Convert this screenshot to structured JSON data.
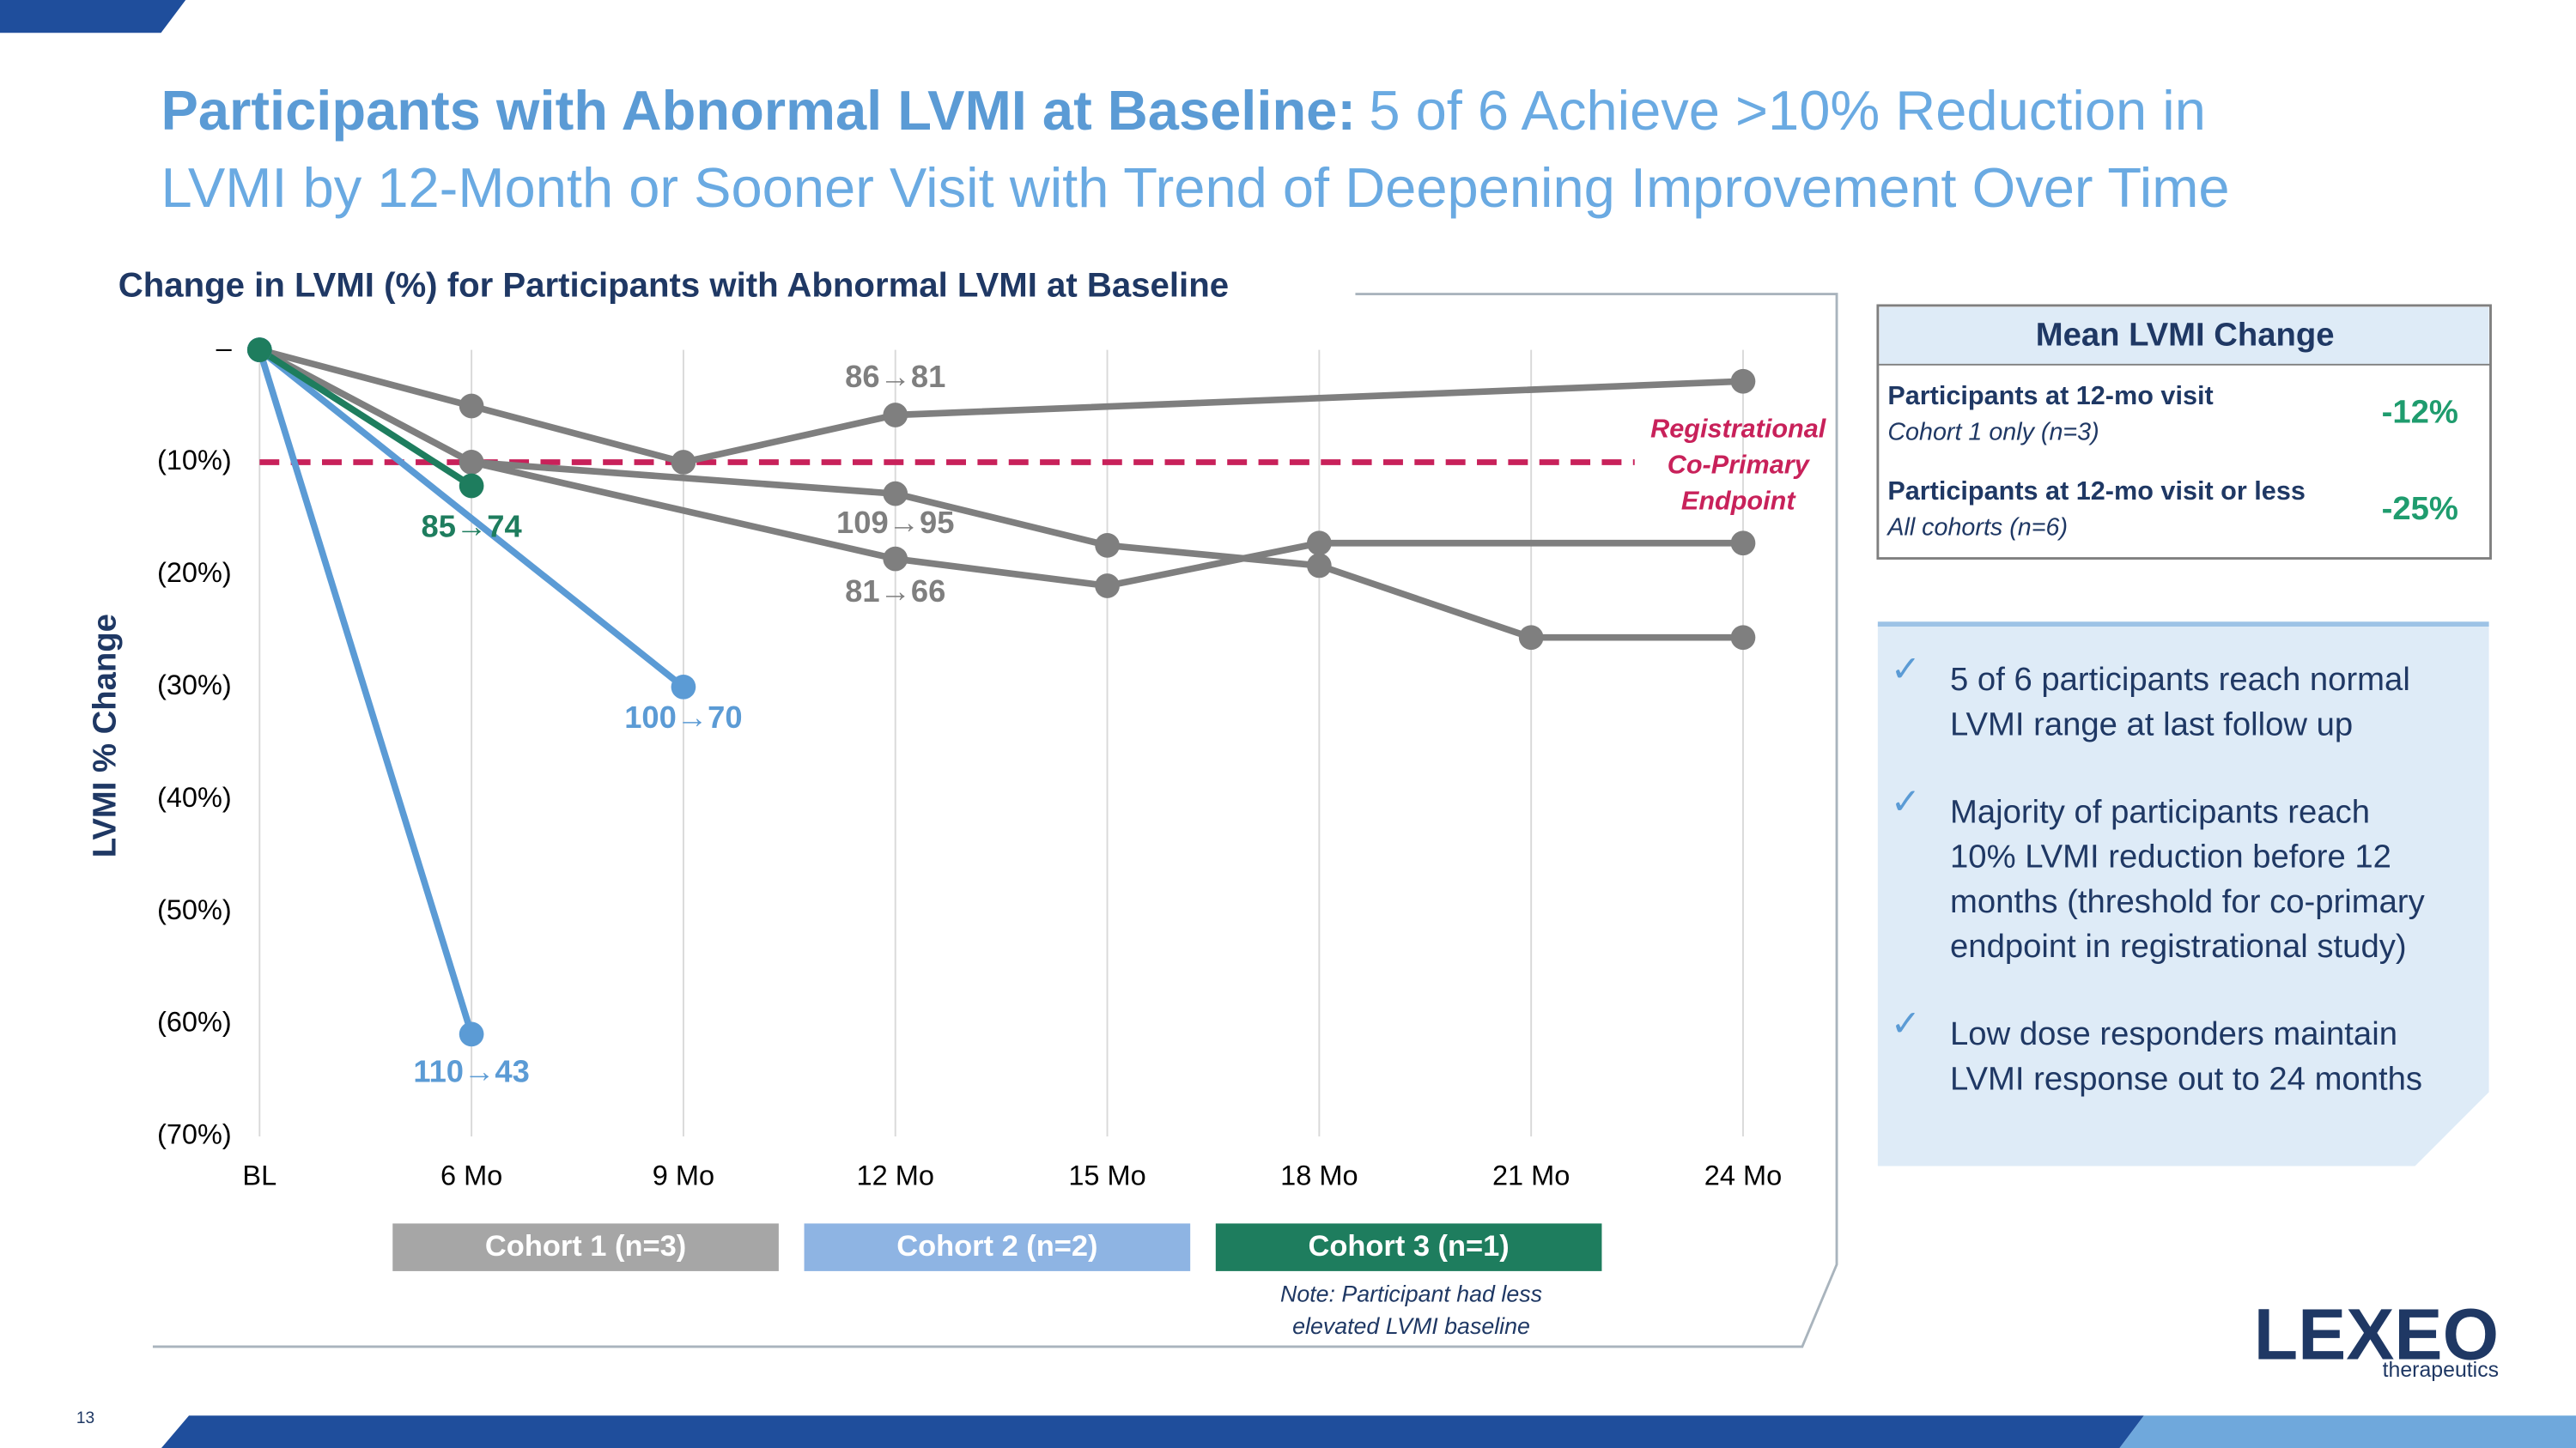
{
  "slide": {
    "title_bold": "Participants with Abnormal LVMI at Baseline:",
    "title_rest": "5 of 6 Achieve >10% Reduction in",
    "title_line2": "LVMI by 12-Month or Sooner Visit with Trend of Deepening Improvement Over Time",
    "mean_box": {
      "title": "Mean LVMI Change",
      "rows": [
        {
          "label": "Participants at 12-mo visit",
          "sub": "Cohort 1 only (n=3)",
          "value": "-12%"
        },
        {
          "label": "Participants at 12-mo visit or less",
          "sub": "All cohorts (n=6)",
          "value": "-25%"
        }
      ]
    },
    "bullets": [
      [
        "5 of 6 participants reach normal",
        "LVMI range at last follow up"
      ],
      [
        "Majority of participants reach",
        "10% LVMI reduction before 12",
        "months (threshold for co-primary",
        "endpoint in registrational study)"
      ],
      [
        "Low dose responders maintain",
        "LVMI response out to 24 months"
      ]
    ],
    "check": "✓",
    "logo": "LEXEO",
    "logo_sub": "therapeutics",
    "page_number": "13"
  },
  "chart_data": {
    "type": "line",
    "title": "Change in LVMI (%) for Participants with Abnormal LVMI at Baseline",
    "y_label": "LVMI % Change",
    "categories": [
      "BL",
      "6 Mo",
      "9 Mo",
      "12 Mo",
      "15 Mo",
      "18 Mo",
      "21 Mo",
      "24 Mo"
    ],
    "ylim": [
      -70,
      0
    ],
    "yticks": [
      {
        "value": 0,
        "label": "–"
      },
      {
        "value": -10,
        "label": "(10%)"
      },
      {
        "value": -20,
        "label": "(20%)"
      },
      {
        "value": -30,
        "label": "(30%)"
      },
      {
        "value": -40,
        "label": "(40%)"
      },
      {
        "value": -50,
        "label": "(50%)"
      },
      {
        "value": -60,
        "label": "(60%)"
      },
      {
        "value": -70,
        "label": "(70%)"
      }
    ],
    "grid": true,
    "series": [
      {
        "color": "#7f7f7f",
        "x": [
          "BL",
          "6 Mo",
          "9 Mo",
          "12 Mo",
          "24 Mo"
        ],
        "values": [
          0,
          -5,
          -10,
          -5.8,
          -2.8
        ],
        "value_labels": [
          null,
          null,
          null,
          "86→81",
          null
        ]
      },
      {
        "color": "#7f7f7f",
        "x": [
          "BL",
          "6 Mo",
          "12 Mo",
          "15 Mo",
          "18 Mo",
          "21 Mo",
          "24 Mo"
        ],
        "values": [
          0,
          -10,
          -12.8,
          -17.4,
          -19.2,
          -25.6,
          -25.6
        ],
        "value_labels": [
          null,
          null,
          "109→95",
          null,
          null,
          null,
          null
        ]
      },
      {
        "color": "#7f7f7f",
        "x": [
          "BL",
          "6 Mo",
          "12 Mo",
          "15 Mo",
          "18 Mo",
          "24 Mo"
        ],
        "values": [
          0,
          -10,
          -18.6,
          -21,
          -17.2,
          -17.2
        ],
        "value_labels": [
          null,
          null,
          "81→66",
          null,
          null,
          null
        ]
      },
      {
        "color": "#5b9bd5",
        "x": [
          "BL",
          "6 Mo"
        ],
        "values": [
          0,
          -60.9
        ],
        "value_labels": [
          null,
          "110→43"
        ]
      },
      {
        "color": "#5b9bd5",
        "x": [
          "BL",
          "9 Mo"
        ],
        "values": [
          0,
          -30
        ],
        "value_labels": [
          null,
          "100→70"
        ]
      },
      {
        "color": "#1e7d5e",
        "x": [
          "BL",
          "6 Mo"
        ],
        "values": [
          0,
          -12.1
        ],
        "value_labels": [
          null,
          "85→74"
        ]
      }
    ],
    "threshold": {
      "value": -10,
      "color": "#c8215a",
      "label": [
        "Registrational",
        "Co-Primary",
        "Endpoint"
      ]
    },
    "legend": [
      {
        "name": "Cohort 1 (n=3)",
        "color": "#a6a6a6"
      },
      {
        "name": "Cohort 2 (n=2)",
        "color": "#8eb4e3"
      },
      {
        "name": "Cohort 3 (n=1)",
        "color": "#1e7d5e"
      }
    ],
    "note": [
      "Note: Participant had less",
      "elevated LVMI baseline"
    ]
  }
}
